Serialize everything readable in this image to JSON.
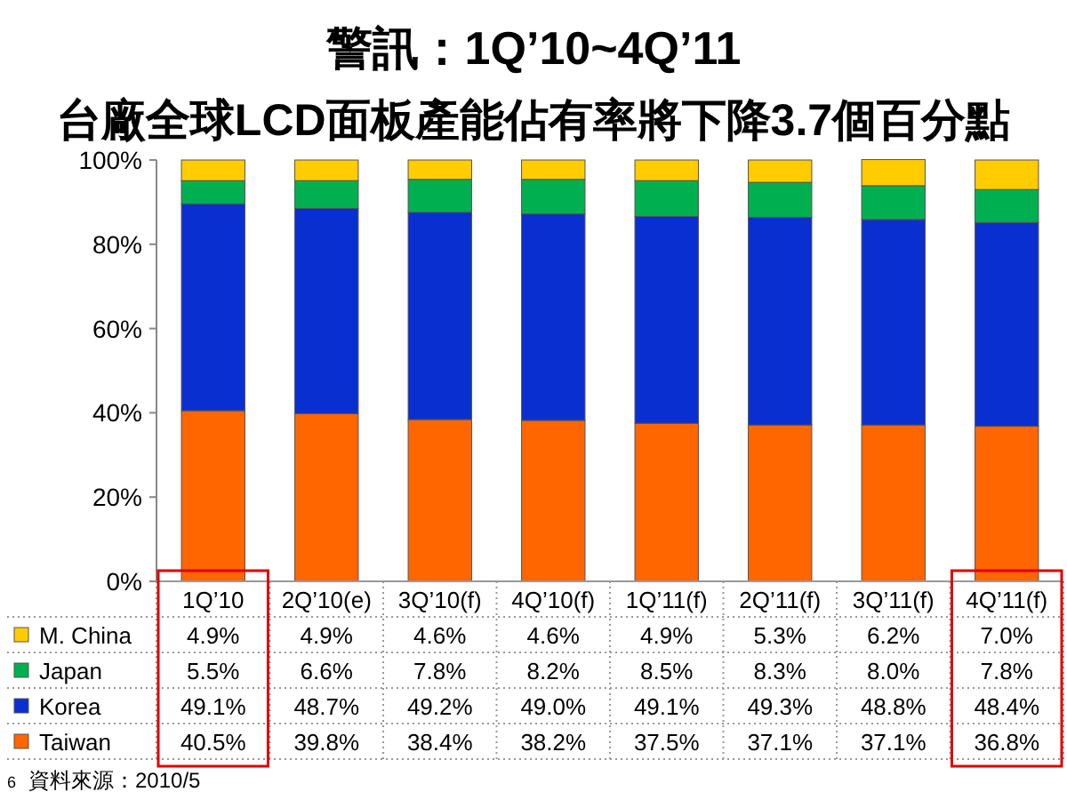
{
  "chart_data": {
    "type": "bar",
    "stacked": true,
    "title": "警訊：1Q’10~4Q’11",
    "subtitle": "台廠全球LCD面板產能佔有率將下降3.7個百分點",
    "categories": [
      "1Q’10",
      "2Q’10(e)",
      "3Q’10(f)",
      "4Q’10(f)",
      "1Q’11(f)",
      "2Q’11(f)",
      "3Q’11(f)",
      "4Q’11(f)"
    ],
    "series": [
      {
        "name": "Taiwan",
        "color": "#ff6600",
        "values": [
          40.5,
          39.8,
          38.4,
          38.2,
          37.5,
          37.1,
          37.1,
          36.8
        ],
        "value_labels": [
          "40.5%",
          "39.8%",
          "38.4%",
          "38.2%",
          "37.5%",
          "37.1%",
          "37.1%",
          "36.8%"
        ]
      },
      {
        "name": "Korea",
        "color": "#0a2fd0",
        "values": [
          49.1,
          48.7,
          49.2,
          49.0,
          49.1,
          49.3,
          48.8,
          48.4
        ],
        "value_labels": [
          "49.1%",
          "48.7%",
          "49.2%",
          "49.0%",
          "49.1%",
          "49.3%",
          "48.8%",
          "48.4%"
        ]
      },
      {
        "name": "Japan",
        "color": "#00b050",
        "values": [
          5.5,
          6.6,
          7.8,
          8.2,
          8.5,
          8.3,
          8.0,
          7.8
        ],
        "value_labels": [
          "5.5%",
          "6.6%",
          "7.8%",
          "8.2%",
          "8.5%",
          "8.3%",
          "8.0%",
          "7.8%"
        ]
      },
      {
        "name": "M. China",
        "color": "#ffcc00",
        "values": [
          4.9,
          4.9,
          4.6,
          4.6,
          4.9,
          5.3,
          6.2,
          7.0
        ],
        "value_labels": [
          "4.9%",
          "4.9%",
          "4.6%",
          "4.6%",
          "4.9%",
          "5.3%",
          "6.2%",
          "7.0%"
        ]
      }
    ],
    "ylim": [
      0,
      100
    ],
    "yticks": [
      {
        "value": 0,
        "label": "0%"
      },
      {
        "value": 20,
        "label": "20%"
      },
      {
        "value": 40,
        "label": "40%"
      },
      {
        "value": 60,
        "label": "60%"
      },
      {
        "value": 80,
        "label": "80%"
      },
      {
        "value": 100,
        "label": "100%"
      }
    ],
    "legend": "bottom",
    "annotations": [
      "6",
      "資料來源：2010/5"
    ]
  }
}
